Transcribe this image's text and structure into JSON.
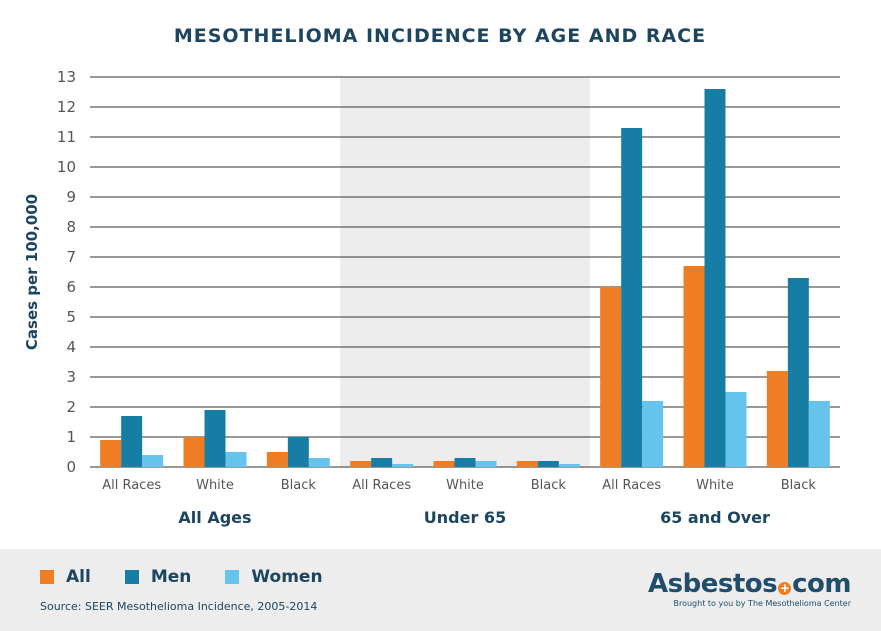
{
  "chart_data": {
    "type": "bar",
    "title": "MESOTHELIOMA INCIDENCE BY AGE AND RACE",
    "ylabel": "Cases per 100,000",
    "xlabel": "",
    "ylim": [
      0,
      13
    ],
    "yticks": [
      "0",
      "1",
      "2",
      "3",
      "4",
      "5",
      "6",
      "7",
      "8",
      "9",
      "10",
      "11",
      "12",
      "13"
    ],
    "grid": true,
    "legend_position": "bottom-left",
    "groups": [
      {
        "name": "All Ages",
        "shaded": false,
        "categories": [
          "All Races",
          "White",
          "Black"
        ]
      },
      {
        "name": "Under 65",
        "shaded": true,
        "categories": [
          "All Races",
          "White",
          "Black"
        ]
      },
      {
        "name": "65 and Over",
        "shaded": false,
        "categories": [
          "All Races",
          "White",
          "Black"
        ]
      }
    ],
    "series": [
      {
        "name": "All",
        "color": "#ef7d23",
        "values": [
          0.9,
          1.0,
          0.5,
          0.2,
          0.2,
          0.2,
          6.0,
          6.7,
          3.2
        ]
      },
      {
        "name": "Men",
        "color": "#167ea5",
        "values": [
          1.7,
          1.9,
          1.0,
          0.3,
          0.3,
          0.2,
          11.3,
          12.6,
          6.3
        ]
      },
      {
        "name": "Women",
        "color": "#66c4ec",
        "values": [
          0.4,
          0.5,
          0.3,
          0.1,
          0.2,
          0.1,
          2.2,
          2.5,
          2.2
        ]
      }
    ]
  },
  "footer": {
    "source": "Source: SEER Mesothelioma Incidence, 2005-2014",
    "logo": {
      "name_left": "Asbestos",
      "dot_glyph": "+",
      "name_right": "com",
      "tagline": "Brought to you by The Mesothelioma Center"
    }
  },
  "colors": {
    "title": "#1c4560",
    "axis_text": "#555555",
    "grid": "#333333",
    "shade": "#ededed"
  }
}
